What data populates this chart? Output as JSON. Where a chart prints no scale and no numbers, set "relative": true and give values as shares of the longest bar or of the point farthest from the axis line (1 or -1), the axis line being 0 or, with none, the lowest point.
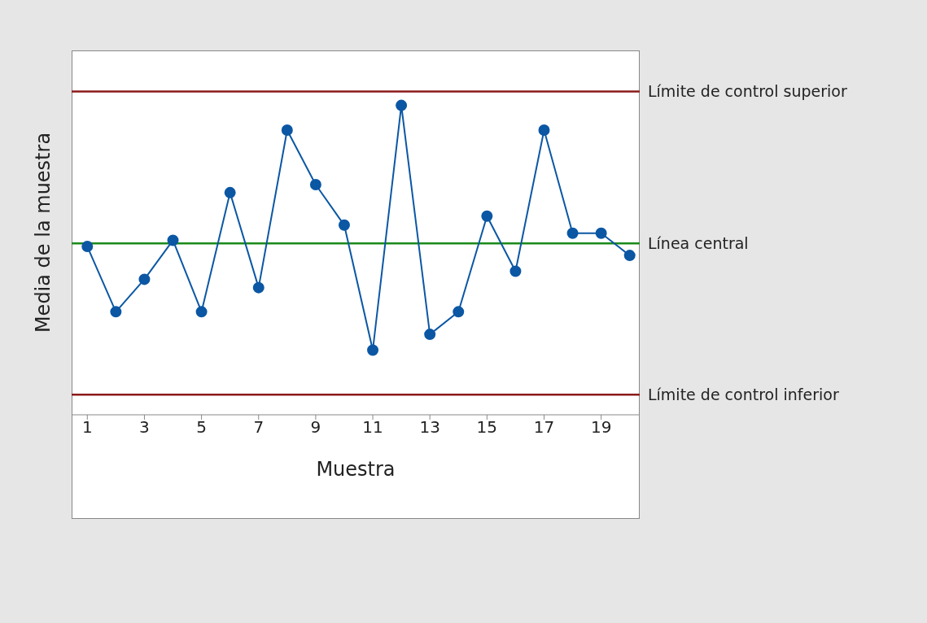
{
  "chart_data": {
    "type": "line",
    "relative": true,
    "xlabel": "Muestra",
    "ylabel": "Media de la muestra",
    "x": [
      1,
      2,
      3,
      4,
      5,
      6,
      7,
      8,
      9,
      10,
      11,
      12,
      13,
      14,
      15,
      16,
      17,
      18,
      19,
      20
    ],
    "xlim": [
      0.45,
      20.35
    ],
    "xticks": [
      1,
      3,
      5,
      7,
      9,
      11,
      13,
      15,
      17,
      19
    ],
    "series": [
      {
        "color": "#0b57a4",
        "values": [
          0.544,
          0.333,
          0.438,
          0.564,
          0.333,
          0.718,
          0.411,
          0.92,
          0.744,
          0.613,
          0.209,
          1,
          0.26,
          0.333,
          0.642,
          0.464,
          0.92,
          0.587,
          0.587,
          0.515
        ]
      }
    ],
    "marker": "circle",
    "line_style": "solid",
    "grid": false,
    "legend": false,
    "ref_lines": [
      {
        "axis": "y",
        "value": 1.045,
        "label": "Límite de control superior",
        "color": "#8b1a1a"
      },
      {
        "axis": "y",
        "value": 0.554,
        "label": "Línea central",
        "color": "#1a8a1a"
      },
      {
        "axis": "y",
        "value": 0.065,
        "label": "Límite de control inferior",
        "color": "#8b1a1a"
      }
    ]
  }
}
